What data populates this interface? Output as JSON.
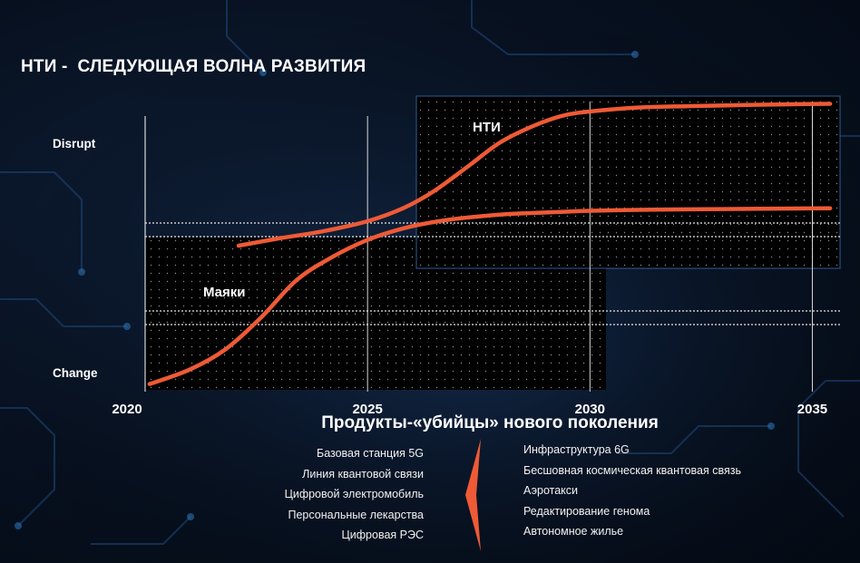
{
  "title": "НТИ -  СЛЕДУЮЩАЯ ВОЛНА РАЗВИТИЯ",
  "chart_data": {
    "type": "line",
    "x_ticks": [
      "2020",
      "2025",
      "2030",
      "2035"
    ],
    "y_labels": {
      "top": "Disrupt",
      "bottom": "Change"
    },
    "xlim": [
      2020,
      2035.5
    ],
    "series": [
      {
        "name": "Маяки",
        "x": [
          2020.1,
          2021.0,
          2021.8,
          2022.6,
          2023.4,
          2024.2,
          2025.0,
          2025.8,
          2026.6,
          2027.4,
          2028.2,
          2029.0,
          2029.8,
          2030.6,
          2031.4,
          2032.2,
          2033.0,
          2033.8,
          2034.6,
          2035.4
        ],
        "y": [
          0.02,
          0.07,
          0.14,
          0.25,
          0.38,
          0.46,
          0.52,
          0.56,
          0.585,
          0.6,
          0.61,
          0.615,
          0.62,
          0.623,
          0.625,
          0.626,
          0.627,
          0.628,
          0.629,
          0.63
        ]
      },
      {
        "name": "НТИ",
        "x": [
          2022.1,
          2023.0,
          2024.0,
          2025.0,
          2025.8,
          2026.5,
          2027.3,
          2028.0,
          2028.8,
          2029.5,
          2030.3,
          2031.2,
          2032.2,
          2033.2,
          2034.2,
          2035.4
        ],
        "y": [
          0.5,
          0.525,
          0.55,
          0.585,
          0.63,
          0.69,
          0.78,
          0.86,
          0.92,
          0.955,
          0.97,
          0.98,
          0.984,
          0.987,
          0.99,
          0.992
        ]
      }
    ]
  },
  "subtitle": "Продукты-«убийцы» нового поколения",
  "products_left": [
    "Базовая станция 5G",
    "Линия квантовой связи",
    "Цифровой электромобиль",
    "Персональные  лекарства",
    "Цифровая РЭС"
  ],
  "products_right": [
    "Инфраструктура 6G",
    "Бесшовная космическая квантовая связь",
    "Аэротакси",
    "Редактирование генома",
    "Автономное жилье"
  ],
  "colors": {
    "curve": "#ee5a36",
    "grid": "#ffffff"
  }
}
